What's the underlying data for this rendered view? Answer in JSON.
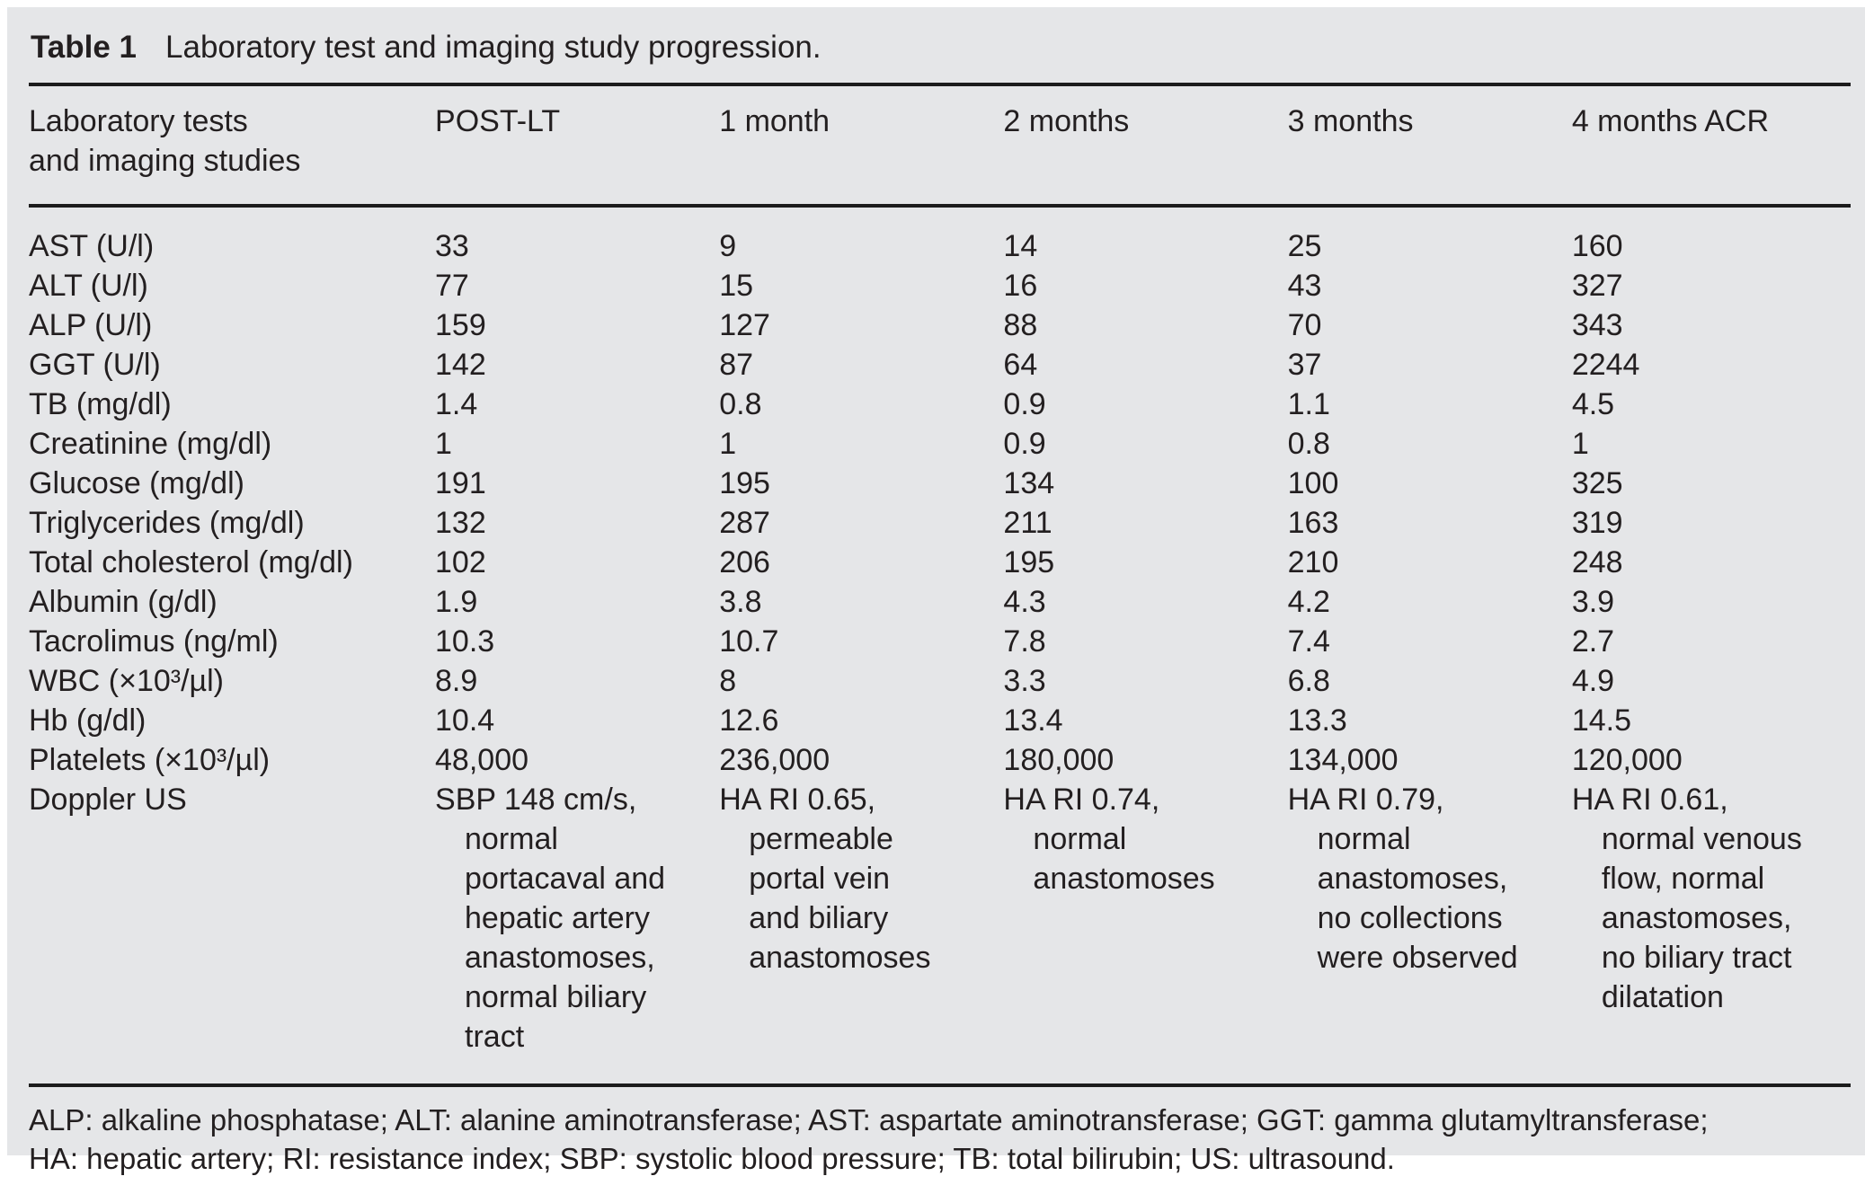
{
  "colors": {
    "page_bg": "#ffffff",
    "panel_bg": "#e5e6e8",
    "text": "#231f20",
    "rule": "#1c1c1c"
  },
  "table": {
    "title_label": "Table 1",
    "title_caption": "Laboratory test and imaging study progression.",
    "header": {
      "row_label_lines": [
        "Laboratory tests",
        "and imaging studies"
      ],
      "period_cols": [
        "POST-LT",
        "1 month",
        "2 months",
        "3 months",
        "4 months ACR"
      ]
    },
    "rows": [
      {
        "label": "AST (U/l)",
        "values": [
          "33",
          "9",
          "14",
          "25",
          "160"
        ]
      },
      {
        "label": "ALT (U/l)",
        "values": [
          "77",
          "15",
          "16",
          "43",
          "327"
        ]
      },
      {
        "label": "ALP (U/l)",
        "values": [
          "159",
          "127",
          "88",
          "70",
          "343"
        ]
      },
      {
        "label": "GGT (U/l)",
        "values": [
          "142",
          "87",
          "64",
          "37",
          "2244"
        ]
      },
      {
        "label": "TB (mg/dl)",
        "values": [
          "1.4",
          "0.8",
          "0.9",
          "1.1",
          "4.5"
        ]
      },
      {
        "label": "Creatinine (mg/dl)",
        "values": [
          "1",
          "1",
          "0.9",
          "0.8",
          "1"
        ]
      },
      {
        "label": "Glucose (mg/dl)",
        "values": [
          "191",
          "195",
          "134",
          "100",
          "325"
        ]
      },
      {
        "label": "Triglycerides (mg/dl)",
        "values": [
          "132",
          "287",
          "211",
          "163",
          "319"
        ]
      },
      {
        "label": "Total cholesterol (mg/dl)",
        "values": [
          "102",
          "206",
          "195",
          "210",
          "248"
        ]
      },
      {
        "label": "Albumin (g/dl)",
        "values": [
          "1.9",
          "3.8",
          "4.3",
          "4.2",
          "3.9"
        ]
      },
      {
        "label": "Tacrolimus (ng/ml)",
        "values": [
          "10.3",
          "10.7",
          "7.8",
          "7.4",
          "2.7"
        ]
      },
      {
        "label": "WBC (×10³/µl)",
        "values": [
          "8.9",
          "8",
          "3.3",
          "6.8",
          "4.9"
        ]
      },
      {
        "label": "Hb (g/dl)",
        "values": [
          "10.4",
          "12.6",
          "13.4",
          "13.3",
          "14.5"
        ]
      },
      {
        "label": "Platelets (×10³/µl)",
        "values": [
          "48,000",
          "236,000",
          "180,000",
          "134,000",
          "120,000"
        ]
      },
      {
        "label": "Doppler US",
        "values": [
          [
            "SBP 148 cm/s,",
            "normal",
            "portacaval and",
            "hepatic artery",
            "anastomoses,",
            "normal biliary",
            "tract"
          ],
          [
            "HA RI 0.65,",
            "permeable",
            "portal vein",
            "and biliary",
            "anastomoses"
          ],
          [
            "HA RI 0.74,",
            "normal",
            "anastomoses"
          ],
          [
            "HA RI 0.79,",
            "normal",
            "anastomoses,",
            "no collections",
            "were observed"
          ],
          [
            "HA RI 0.61,",
            "normal venous",
            "flow, normal",
            "anastomoses,",
            "no biliary tract",
            "dilatation"
          ]
        ]
      }
    ],
    "footnote_lines": [
      "ALP: alkaline phosphatase; ALT: alanine aminotransferase; AST: aspartate aminotransferase; GGT: gamma glutamyltransferase;",
      "HA: hepatic artery; RI: resistance index; SBP: systolic blood pressure; TB: total bilirubin; US: ultrasound."
    ]
  }
}
